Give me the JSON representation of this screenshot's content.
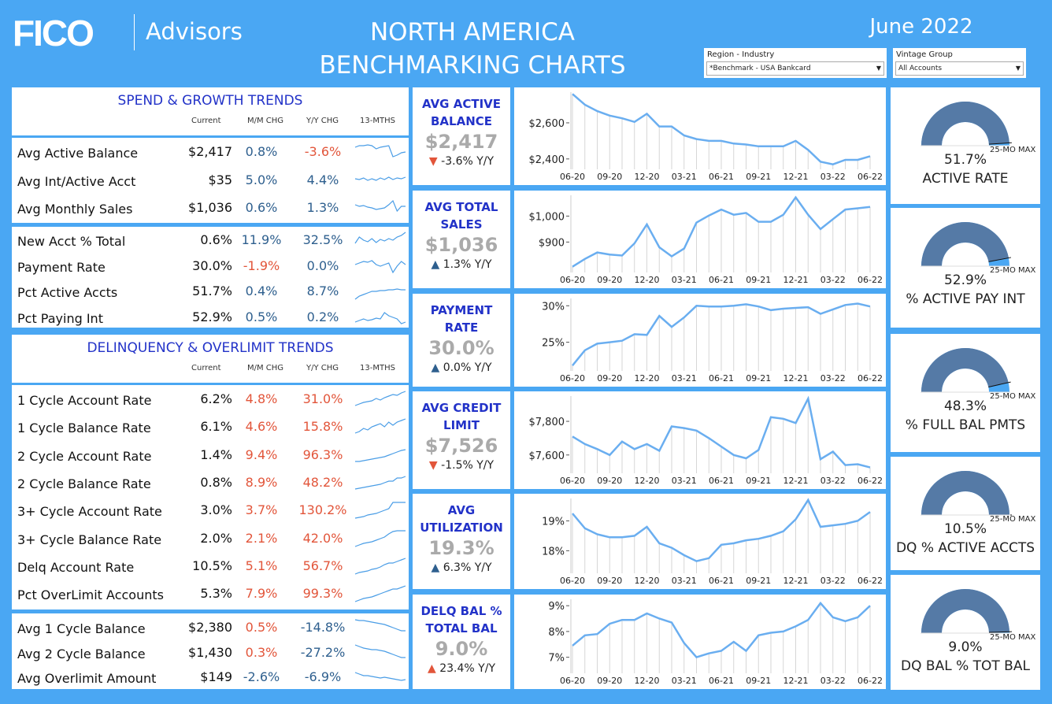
{
  "header": {
    "logo": "FICO",
    "brand": "Advisors",
    "title_line1": "NORTH AMERICA",
    "title_line2": "BENCHMARKING CHARTS",
    "date": "June 2022"
  },
  "filters": {
    "region": {
      "label": "Region - Industry",
      "value": "*Benchmark - USA Bankcard"
    },
    "vintage": {
      "label": "Vintage Group",
      "value": "All Accounts"
    }
  },
  "columns": {
    "current": "Current",
    "mm": "M/M CHG",
    "yy": "Y/Y CHG",
    "trend": "13-MTHS"
  },
  "spend": {
    "title": "SPEND & GROWTH TRENDS",
    "rows": [
      {
        "name": "Avg Active Balance",
        "current": "$2,417",
        "mm": "0.8%",
        "yy": "-3.6%",
        "mm_c": "blue",
        "yy_c": "red",
        "spark": [
          8,
          6,
          6,
          5,
          6,
          10,
          8,
          7,
          6,
          20,
          18,
          15,
          14
        ]
      },
      {
        "name": "Avg Int/Active Acct",
        "current": "$35",
        "mm": "5.0%",
        "yy": "4.4%",
        "mm_c": "blue",
        "yy_c": "blue",
        "spark": [
          12,
          13,
          11,
          14,
          12,
          14,
          11,
          13,
          10,
          13,
          11,
          12,
          10
        ]
      },
      {
        "name": "Avg Monthly Sales",
        "current": "$1,036",
        "mm": "0.6%",
        "yy": "1.3%",
        "mm_c": "blue",
        "yy_c": "blue",
        "spark": [
          10,
          12,
          11,
          13,
          14,
          16,
          15,
          14,
          10,
          5,
          18,
          12,
          12
        ]
      }
    ]
  },
  "growth": {
    "rows": [
      {
        "name": "New Acct % Total",
        "current": "0.6%",
        "mm": "11.9%",
        "yy": "32.5%",
        "mm_c": "blue",
        "yy_c": "blue",
        "spark": [
          18,
          10,
          14,
          16,
          12,
          17,
          13,
          15,
          12,
          14,
          10,
          8,
          4
        ]
      },
      {
        "name": "Payment Rate",
        "current": "30.0%",
        "mm": "-1.9%",
        "yy": "0.0%",
        "mm_c": "red",
        "yy_c": "blue",
        "spark": [
          12,
          10,
          8,
          9,
          7,
          12,
          14,
          12,
          10,
          22,
          14,
          8,
          12
        ]
      },
      {
        "name": "Pct Active Accts",
        "current": "51.7%",
        "mm": "0.4%",
        "yy": "8.7%",
        "mm_c": "blue",
        "yy_c": "blue",
        "spark": [
          24,
          20,
          18,
          16,
          14,
          14,
          13,
          13,
          12,
          12,
          11,
          12,
          12
        ]
      },
      {
        "name": "Pct Paying Int",
        "current": "52.9%",
        "mm": "0.5%",
        "yy": "0.2%",
        "mm_c": "blue",
        "yy_c": "blue",
        "spark": [
          20,
          18,
          16,
          18,
          17,
          15,
          16,
          8,
          12,
          14,
          16,
          22,
          20
        ]
      }
    ]
  },
  "delinquency": {
    "title": "DELINQUENCY & OVERLIMIT TRENDS",
    "rows": [
      {
        "name": "1 Cycle Account Rate",
        "current": "6.2%",
        "mm": "4.8%",
        "yy": "31.0%",
        "mm_c": "red",
        "yy_c": "red",
        "spark": [
          22,
          20,
          18,
          17,
          16,
          13,
          15,
          12,
          10,
          8,
          9,
          6,
          4
        ]
      },
      {
        "name": "1 Cycle Balance Rate",
        "current": "6.1%",
        "mm": "4.6%",
        "yy": "15.8%",
        "mm_c": "red",
        "yy_c": "red",
        "spark": [
          22,
          20,
          16,
          18,
          14,
          12,
          10,
          14,
          8,
          12,
          8,
          6,
          4
        ]
      },
      {
        "name": "2 Cycle Account Rate",
        "current": "1.4%",
        "mm": "9.4%",
        "yy": "96.3%",
        "mm_c": "red",
        "yy_c": "red",
        "spark": [
          22,
          22,
          21,
          20,
          19,
          18,
          17,
          16,
          14,
          12,
          10,
          8,
          7
        ]
      },
      {
        "name": "2 Cycle Balance Rate",
        "current": "0.8%",
        "mm": "8.9%",
        "yy": "48.2%",
        "mm_c": "red",
        "yy_c": "red",
        "spark": [
          22,
          21,
          20,
          19,
          18,
          17,
          16,
          14,
          12,
          12,
          8,
          8,
          6
        ]
      },
      {
        "name": "3+ Cycle Account Rate",
        "current": "3.0%",
        "mm": "3.7%",
        "yy": "130.2%",
        "mm_c": "red",
        "yy_c": "red",
        "spark": [
          24,
          23,
          22,
          20,
          19,
          18,
          16,
          14,
          12,
          4,
          4,
          4,
          4
        ]
      },
      {
        "name": "3+ Cycle Balance Rate",
        "current": "2.0%",
        "mm": "2.1%",
        "yy": "42.0%",
        "mm_c": "red",
        "yy_c": "red",
        "spark": [
          24,
          22,
          20,
          19,
          18,
          16,
          14,
          12,
          8,
          5,
          4,
          4,
          4
        ]
      },
      {
        "name": "Delq Account Rate",
        "current": "10.5%",
        "mm": "5.1%",
        "yy": "56.7%",
        "mm_c": "red",
        "yy_c": "red",
        "spark": [
          24,
          22,
          21,
          20,
          18,
          17,
          15,
          12,
          10,
          10,
          8,
          6,
          4
        ]
      },
      {
        "name": "Pct OverLimit Accounts",
        "current": "5.3%",
        "mm": "7.9%",
        "yy": "99.3%",
        "mm_c": "red",
        "yy_c": "red",
        "spark": [
          24,
          22,
          20,
          19,
          18,
          16,
          14,
          12,
          10,
          8,
          8,
          6,
          4
        ]
      }
    ]
  },
  "overlimit": {
    "rows": [
      {
        "name": "Avg 1 Cycle Balance",
        "current": "$2,380",
        "mm": "0.5%",
        "yy": "-14.8%",
        "mm_c": "red",
        "yy_c": "blue",
        "spark": [
          4,
          5,
          5,
          6,
          7,
          8,
          9,
          10,
          12,
          14,
          16,
          18,
          18
        ]
      },
      {
        "name": "Avg 2 Cycle Balance",
        "current": "$1,430",
        "mm": "0.3%",
        "yy": "-27.2%",
        "mm_c": "red",
        "yy_c": "blue",
        "spark": [
          4,
          6,
          8,
          9,
          10,
          10,
          11,
          12,
          14,
          16,
          18,
          20,
          20
        ]
      },
      {
        "name": "Avg Overlimit Amount",
        "current": "$149",
        "mm": "-2.6%",
        "yy": "-6.9%",
        "mm_c": "blue",
        "yy_c": "blue",
        "spark": [
          8,
          10,
          12,
          12,
          13,
          14,
          15,
          14,
          15,
          16,
          17,
          18,
          17
        ]
      }
    ]
  },
  "kpis": [
    {
      "title1": "AVG ACTIVE",
      "title2": "BALANCE",
      "value": "$2,417",
      "arrow": "▼",
      "arrow_color": "#e2553a",
      "change": "-3.6%",
      "suffix": "Y/Y"
    },
    {
      "title1": "AVG TOTAL",
      "title2": "SALES",
      "value": "$1,036",
      "arrow": "▲",
      "arrow_color": "#2e5f8e",
      "change": "1.3%",
      "suffix": "Y/Y"
    },
    {
      "title1": "PAYMENT",
      "title2": "RATE",
      "value": "30.0%",
      "arrow": "▲",
      "arrow_color": "#2e5f8e",
      "change": "0.0%",
      "suffix": "Y/Y"
    },
    {
      "title1": "AVG CREDIT",
      "title2": "LIMIT",
      "value": "$7,526",
      "arrow": "▼",
      "arrow_color": "#e2553a",
      "change": "-1.5%",
      "suffix": "Y/Y"
    },
    {
      "title1": "AVG",
      "title2": "UTILIZATION",
      "value": "19.3%",
      "arrow": "▲",
      "arrow_color": "#2e5f8e",
      "change": "6.3%",
      "suffix": "Y/Y"
    },
    {
      "title1": "DELQ BAL %",
      "title2": "TOTAL BAL",
      "value": "9.0%",
      "arrow": "▲",
      "arrow_color": "#e2553a",
      "change": "23.4%",
      "suffix": "Y/Y"
    }
  ],
  "chart_data": [
    {
      "type": "line",
      "title": "AVG ACTIVE BALANCE",
      "x_ticks": [
        "06-20",
        "09-20",
        "12-20",
        "03-21",
        "06-21",
        "09-21",
        "12-21",
        "03-22",
        "06-22"
      ],
      "y_ticks": [
        {
          "v": 2600,
          "t": "$2,600"
        },
        {
          "v": 2400,
          "t": "$2,400"
        }
      ],
      "ylim": [
        2360,
        2770
      ],
      "values": [
        2760,
        2700,
        2665,
        2640,
        2625,
        2605,
        2650,
        2580,
        2580,
        2530,
        2510,
        2500,
        2500,
        2485,
        2480,
        2470,
        2470,
        2470,
        2500,
        2450,
        2385,
        2370,
        2395,
        2395,
        2415
      ]
    },
    {
      "type": "line",
      "title": "AVG TOTAL SALES",
      "x_ticks": [
        "06-20",
        "09-20",
        "12-20",
        "03-21",
        "06-21",
        "09-21",
        "12-21",
        "03-22",
        "06-22"
      ],
      "y_ticks": [
        {
          "v": 1000,
          "t": "$1,000"
        },
        {
          "v": 900,
          "t": "$900"
        }
      ],
      "ylim": [
        795,
        1080
      ],
      "values": [
        805,
        835,
        860,
        852,
        848,
        895,
        968,
        880,
        845,
        875,
        975,
        1002,
        1025,
        1005,
        1012,
        978,
        978,
        1005,
        1072,
        1005,
        950,
        988,
        1025,
        1030,
        1035
      ]
    },
    {
      "type": "line",
      "title": "PAYMENT RATE",
      "x_ticks": [
        "06-20",
        "09-20",
        "12-20",
        "03-21",
        "06-21",
        "09-21",
        "12-21",
        "03-22",
        "06-22"
      ],
      "y_ticks": [
        {
          "v": 30,
          "t": "30%"
        },
        {
          "v": 25,
          "t": "25%"
        }
      ],
      "ylim": [
        21.5,
        31.0
      ],
      "values": [
        21.8,
        23.9,
        24.8,
        25.0,
        25.2,
        26.1,
        26.0,
        28.6,
        27.1,
        28.4,
        30.0,
        29.9,
        29.9,
        30.0,
        30.2,
        29.9,
        29.4,
        29.6,
        29.7,
        29.8,
        28.9,
        29.5,
        30.1,
        30.3,
        29.9
      ]
    },
    {
      "type": "line",
      "title": "AVG CREDIT LIMIT",
      "x_ticks": [
        "06-20",
        "09-20",
        "12-20",
        "03-21",
        "06-21",
        "09-21",
        "12-21",
        "03-22",
        "06-22"
      ],
      "y_ticks": [
        {
          "v": 7800,
          "t": "$7,800"
        },
        {
          "v": 7600,
          "t": "$7,600"
        }
      ],
      "ylim": [
        7510,
        7950
      ],
      "values": [
        7710,
        7665,
        7635,
        7600,
        7680,
        7635,
        7665,
        7625,
        7770,
        7760,
        7745,
        7700,
        7650,
        7600,
        7580,
        7630,
        7825,
        7815,
        7790,
        7935,
        7575,
        7620,
        7540,
        7545,
        7526
      ]
    },
    {
      "type": "line",
      "title": "AVG UTILIZATION",
      "x_ticks": [
        "06-20",
        "09-20",
        "12-20",
        "03-21",
        "06-21",
        "09-21",
        "12-21",
        "03-22",
        "06-22"
      ],
      "y_ticks": [
        {
          "v": 19,
          "t": "19%"
        },
        {
          "v": 18,
          "t": "18%"
        }
      ],
      "ylim": [
        17.35,
        19.75
      ],
      "values": [
        19.25,
        18.75,
        18.55,
        18.45,
        18.45,
        18.5,
        18.8,
        18.25,
        18.1,
        17.85,
        17.65,
        17.75,
        18.2,
        18.25,
        18.35,
        18.4,
        18.5,
        18.65,
        19.05,
        19.7,
        18.8,
        18.85,
        18.9,
        19.0,
        19.3
      ]
    },
    {
      "type": "line",
      "title": "DELQ BAL % TOTAL BAL",
      "x_ticks": [
        "06-20",
        "09-20",
        "12-20",
        "03-21",
        "06-21",
        "09-21",
        "12-21",
        "03-22",
        "06-22"
      ],
      "y_ticks": [
        {
          "v": 9,
          "t": "9%"
        },
        {
          "v": 8,
          "t": "8%"
        },
        {
          "v": 7,
          "t": "7%"
        }
      ],
      "ylim": [
        6.5,
        9.25
      ],
      "values": [
        7.45,
        7.85,
        7.9,
        8.3,
        8.45,
        8.45,
        8.7,
        8.5,
        8.35,
        7.55,
        7.0,
        7.15,
        7.25,
        7.6,
        7.25,
        7.85,
        7.95,
        8.0,
        8.2,
        8.45,
        9.1,
        8.55,
        8.4,
        8.55,
        9.0
      ]
    }
  ],
  "gauges": [
    {
      "value": "51.7%",
      "label": "ACTIVE RATE",
      "max_label": "25-MO MAX",
      "frac": 0.98
    },
    {
      "value": "52.9%",
      "label": "% ACTIVE PAY INT",
      "max_label": "25-MO MAX",
      "frac": 0.94
    },
    {
      "value": "48.3%",
      "label": "% FULL BAL PMTS",
      "max_label": "25-MO MAX",
      "frac": 0.93
    },
    {
      "value": "10.5%",
      "label": "DQ % ACTIVE ACCTS",
      "max_label": "25-MO MAX",
      "frac": 1.0
    },
    {
      "value": "9.0%",
      "label": "DQ BAL % TOT BAL",
      "max_label": "25-MO MAX",
      "frac": 0.99
    }
  ]
}
